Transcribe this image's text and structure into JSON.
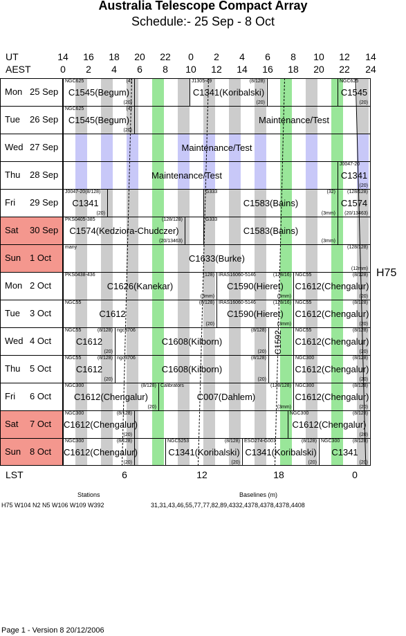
{
  "title": "Australia Telescope Compact Array",
  "subtitle": "Schedule:- 25 Sep - 8  Oct",
  "header": {
    "ut_label": "UT",
    "aest_label": "AEST",
    "ut_ticks": [
      "14",
      "16",
      "18",
      "20",
      "22",
      "0",
      "2",
      "4",
      "6",
      "8",
      "10",
      "12",
      "14"
    ],
    "aest_ticks": [
      "0",
      "2",
      "4",
      "6",
      "8",
      "10",
      "12",
      "14",
      "16",
      "18",
      "20",
      "22",
      "24"
    ]
  },
  "lst": {
    "label": "LST",
    "ticks": [
      "6",
      "12",
      "18",
      "0"
    ]
  },
  "config": "H75",
  "colors": {
    "weekend": "#f4978e",
    "grey": "#cccccc",
    "green": "#99e699",
    "blue": "#c8c8f8"
  },
  "days": [
    {
      "day": "Mon",
      "date": "25 Sep",
      "weekend": false,
      "stripe_color": "grey",
      "blocks": [
        {
          "left": 0,
          "width": 103,
          "name": "C1545(Begum)",
          "tl": "NGC625",
          "tr": "(4)",
          "br": "(20)"
        },
        {
          "left": 103,
          "width": 80,
          "name": "",
          "tl": "",
          "tr": "",
          "br": ""
        },
        {
          "left": 183,
          "width": 112,
          "name": "C1341(Koribalski)",
          "tl": "J1305-49",
          "tr": "(8/128)",
          "br": "(20)"
        },
        {
          "left": 295,
          "width": 102,
          "name": "",
          "tl": "",
          "tr": "",
          "br": ""
        },
        {
          "left": 397,
          "width": 47,
          "name": "C1545",
          "tl": "NGC625",
          "tr": "",
          "br": "(20)"
        }
      ]
    },
    {
      "day": "Tue",
      "date": "26 Sep",
      "weekend": false,
      "stripe_color": "grey",
      "blocks": [
        {
          "left": 0,
          "width": 103,
          "name": "C1545(Begum)",
          "tl": "NGC625",
          "tr": "(4)",
          "br": "(20)"
        },
        {
          "left": 103,
          "width": 341,
          "name": "Maintenance/Test",
          "tl": "",
          "tr": "",
          "br": "",
          "nameOffset": 120
        }
      ]
    },
    {
      "day": "Wed",
      "date": "27 Sep",
      "weekend": false,
      "stripe_color": "blue",
      "blocks": [
        {
          "left": 0,
          "width": 444,
          "name": "Maintenance/Test",
          "tl": "",
          "tr": "",
          "br": ""
        }
      ]
    },
    {
      "day": "Thu",
      "date": "28 Sep",
      "weekend": false,
      "stripe_color": "blue",
      "blocks": [
        {
          "left": 0,
          "width": 397,
          "name": "Maintenance/Test",
          "tl": "",
          "tr": "",
          "br": "",
          "nameOffset": -40
        },
        {
          "left": 397,
          "width": 47,
          "name": "C1341",
          "tl": "J0047-20",
          "tr": "",
          "br": "(20)"
        }
      ]
    },
    {
      "day": "Fri",
      "date": "29 Sep",
      "weekend": false,
      "stripe_color": "grey",
      "blocks": [
        {
          "left": 0,
          "width": 64,
          "name": "C1341",
          "tl": "J0047-20(8/128)",
          "tr": "",
          "br": "(20)"
        },
        {
          "left": 64,
          "width": 139,
          "name": "",
          "tl": "",
          "tr": "",
          "br": ""
        },
        {
          "left": 203,
          "width": 194,
          "name": "C1583(Bains)",
          "tl": "G333",
          "tr": "(32)",
          "br": "(3mm)"
        },
        {
          "left": 397,
          "width": 47,
          "name": "C1574",
          "tl": "",
          "tr": "(128/128)",
          "br": "(20/13463)"
        }
      ]
    },
    {
      "day": "Sat",
      "date": "30 Sep",
      "weekend": true,
      "stripe_color": "grey",
      "blocks": [
        {
          "left": 0,
          "width": 176,
          "name": "C1574(Kedziora-Chudczer)",
          "tl": "PKS0405-385",
          "tr": "(128/128)",
          "br": "(20/13463)"
        },
        {
          "left": 176,
          "width": 27,
          "name": "",
          "tl": "",
          "tr": "",
          "br": ""
        },
        {
          "left": 203,
          "width": 194,
          "name": "C1583(Bains)",
          "tl": "G333",
          "tr": "",
          "br": "(3mm)"
        },
        {
          "left": 397,
          "width": 47,
          "name": "",
          "tl": "",
          "tr": "",
          "br": ""
        }
      ]
    },
    {
      "day": "Sun",
      "date": "1  Oct",
      "weekend": true,
      "stripe_color": "grey",
      "blocks": [
        {
          "left": 0,
          "width": 444,
          "name": "C1633(Burke)",
          "tl": "many",
          "tr": "(128/128)",
          "br": "(12mm)"
        }
      ]
    },
    {
      "day": "Mon",
      "date": "2  Oct",
      "weekend": false,
      "stripe_color": "grey",
      "blocks": [
        {
          "left": 0,
          "width": 222,
          "name": "C1626(Kanekar)",
          "tl": "PKS0438-436",
          "tr": "(128)",
          "br": "(3mm)"
        },
        {
          "left": 222,
          "width": 111,
          "name": "C1590(Hieret)",
          "tl": "IRAS16060-5146",
          "tr": "(128/16)",
          "br": "(3mm)"
        },
        {
          "left": 333,
          "width": 111,
          "name": "C1612(Chengalur)",
          "tl": "NGC55",
          "tr": "(8/128)",
          "br": "(20)"
        }
      ]
    },
    {
      "day": "Tue",
      "date": "3  Oct",
      "weekend": false,
      "stripe_color": "grey",
      "blocks": [
        {
          "left": 0,
          "width": 222,
          "name": "C1612",
          "tl": "NGC55",
          "tr": "(8/128)",
          "br": "(20)",
          "nameOffset": -80
        },
        {
          "left": 222,
          "width": 111,
          "name": "C1590(Hieret)",
          "tl": "IRAS16060-5146",
          "tr": "(128/16)",
          "br": "(3mm)"
        },
        {
          "left": 333,
          "width": 111,
          "name": "C1612(Chengalur)",
          "tl": "NGC55",
          "tr": "(8/128)",
          "br": "(20)"
        }
      ]
    },
    {
      "day": "Wed",
      "date": "4  Oct",
      "weekend": false,
      "stripe_color": "grey",
      "blocks": [
        {
          "left": 0,
          "width": 75,
          "name": "C1612",
          "tl": "NGC55",
          "tr": "(8/128)",
          "br": "(20)"
        },
        {
          "left": 75,
          "width": 222,
          "name": "C1608(Kilborn)",
          "tl": "ngc3706",
          "tr": "(8/128)",
          "br": "(20)"
        },
        {
          "left": 297,
          "width": 36,
          "name": "",
          "tl": "",
          "tr": "",
          "br": "",
          "vlabel": "C1592"
        },
        {
          "left": 333,
          "width": 111,
          "name": "C1612(Chengalur)",
          "tl": "NGC55",
          "tr": "(8/128)",
          "br": "(20)"
        }
      ]
    },
    {
      "day": "Thu",
      "date": "5  Oct",
      "weekend": false,
      "stripe_color": "grey",
      "blocks": [
        {
          "left": 0,
          "width": 75,
          "name": "C1612",
          "tl": "NGC55",
          "tr": "(8/128)",
          "br": "(20)"
        },
        {
          "left": 75,
          "width": 222,
          "name": "C1608(Kilborn)",
          "tl": "ngc3706",
          "tr": "(8/128)",
          "br": "(20)"
        },
        {
          "left": 297,
          "width": 36,
          "name": "",
          "tl": "",
          "tr": "",
          "br": ""
        },
        {
          "left": 333,
          "width": 111,
          "name": "C1612(Chengalur)",
          "tl": "NGC300",
          "tr": "(8/128)",
          "br": "(20)"
        }
      ]
    },
    {
      "day": "Fri",
      "date": "6  Oct",
      "weekend": false,
      "stripe_color": "grey",
      "blocks": [
        {
          "left": 0,
          "width": 138,
          "name": "C1612(Chengalur)",
          "tl": "NGC300",
          "tr": "(8/128)",
          "br": "(20)"
        },
        {
          "left": 138,
          "width": 195,
          "name": "C007(Dahlem)",
          "tl": "Calibrators",
          "tr": "(128/128)",
          "br": "(3mm)"
        },
        {
          "left": 333,
          "width": 111,
          "name": "C1612(Chengalur)",
          "tl": "NGC300",
          "tr": "(8/128)",
          "br": "(20)"
        }
      ]
    },
    {
      "day": "Sat",
      "date": "7  Oct",
      "weekend": true,
      "stripe_color": "grey",
      "blocks": [
        {
          "left": 0,
          "width": 103,
          "name": "C1612(Chengalur)",
          "tl": "NGC300",
          "tr": "(8/128)",
          "br": "(20)"
        },
        {
          "left": 103,
          "width": 222,
          "name": "",
          "tl": "",
          "tr": "",
          "br": ""
        },
        {
          "left": 325,
          "width": 119,
          "name": "C1612(Chengalur)",
          "tl": "NGC300",
          "tr": "(8/128)",
          "br": "(20)"
        }
      ]
    },
    {
      "day": "Sun",
      "date": "8  Oct",
      "weekend": true,
      "stripe_color": "grey",
      "blocks": [
        {
          "left": 0,
          "width": 103,
          "name": "C1612(Chengalur)",
          "tl": "NGC300",
          "tr": "(8/128)",
          "br": "(20)"
        },
        {
          "left": 103,
          "width": 45,
          "name": "",
          "tl": "",
          "tr": "",
          "br": ""
        },
        {
          "left": 148,
          "width": 111,
          "name": "C1341(Koribalski)",
          "tl": "NGC5253",
          "tr": "(8/128)",
          "br": "(20)"
        },
        {
          "left": 259,
          "width": 111,
          "name": "C1341(Koribalski)",
          "tl": "ESO274-G001",
          "tr": "(8/128)",
          "br": "(20)"
        },
        {
          "left": 370,
          "width": 74,
          "name": "C1341",
          "tl": "NGC300",
          "tr": "(8/128)",
          "br": "(20)"
        }
      ]
    }
  ],
  "footer": {
    "stations_title": "Stations",
    "stations": "H75    W104 N2 N5 W106 W109 W392",
    "baselines_title": "Baselines (m)",
    "baselines": "31,31,43,46,55,77,77,82,89,4332,4378,4378,4378,4408",
    "page": "Page 1 - Version 8  20/12/2006"
  }
}
